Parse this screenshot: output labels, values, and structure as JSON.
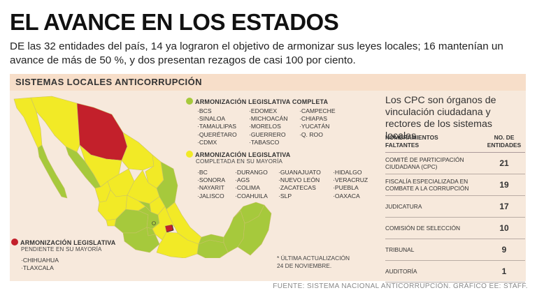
{
  "title": "EL AVANCE EN LOS ESTADOS",
  "subtitle": "DE las 32 entidades del país, 14 ya lograron el objetivo de armonizar sus leyes locales; 16 mantenían un avance de más de 50 %, y dos presentan rezagos de casi 100 por ciento.",
  "section": "SISTEMAS LOCALES ANTICORRUPCIÓN",
  "colors": {
    "green": "#a6c93c",
    "yellow": "#f2ea26",
    "red": "#c3202b",
    "panel": "#f7e9dc",
    "bar": "#f7dec9"
  },
  "categories": {
    "complete": {
      "title": "ARMONIZACIÓN LEGISLATIVA COMPLETA",
      "columns": [
        [
          "BCS",
          "SINALOA",
          "TAMAULIPAS",
          "QUERÉTARO",
          "CDMX"
        ],
        [
          "EDOMEX",
          "MICHOACÁN",
          "MORELOS",
          "GUERRERO",
          "TABASCO"
        ],
        [
          "CAMPECHE",
          "CHIAPAS",
          "YUCATÁN",
          "Q. ROO"
        ]
      ]
    },
    "majority": {
      "title": "ARMONIZACIÓN LEGISLATIVA",
      "subtitle": "COMPLETADA EN SU MAYORÍA",
      "columns": [
        [
          "BC",
          "SONORA",
          "NAYARIT",
          "JALISCO"
        ],
        [
          "DURANGO",
          "AGS",
          "COLIMA",
          "COAHUILA"
        ],
        [
          "GUANAJUATO",
          "NUEVO LEÓN",
          "ZACATECAS",
          "SLP"
        ],
        [
          "HIDALGO",
          "VERACRUZ",
          "PUEBLA",
          "OAXACA"
        ]
      ]
    },
    "pending": {
      "title": "ARMONIZACIÓN LEGISLATIVA",
      "subtitle": "PENDIENTE EN SU MAYORÍA",
      "items": [
        "CHIHUAHUA",
        "TLAXCALA"
      ]
    }
  },
  "note": [
    "* ÚLTIMA ACTUALIZACIÓN",
    "24 DE NOVIEMBRE."
  ],
  "side": {
    "title": "Los CPC son órganos de vinculación ciudadana y rectores de los sistemas locales",
    "col_left": [
      "NOMBRAMIENTOS",
      "FALTANTES"
    ],
    "col_right": [
      "NO. DE",
      "ENTIDADES"
    ],
    "rows": [
      {
        "label": [
          "COMITÉ DE PARTICIPACIÓN",
          "CIUDADANA (CPC)"
        ],
        "value": "21"
      },
      {
        "label": [
          "FISCALÍA ESPECIALIZADA EN",
          "COMBATE A LA CORRUPCIÓN"
        ],
        "value": "19"
      },
      {
        "label": [
          "JUDICATURA"
        ],
        "value": "17"
      },
      {
        "label": [
          "COMISIÓN DE SELECCIÓN"
        ],
        "value": "10"
      },
      {
        "label": [
          "TRIBUNAL"
        ],
        "value": "9"
      },
      {
        "label": [
          "AUDITORÍA"
        ],
        "value": "1"
      }
    ]
  },
  "source": "FUENTE: SISTEMA NACIONAL ANTICORRUPCIÓN. GRÁFICO EE: STAFF."
}
